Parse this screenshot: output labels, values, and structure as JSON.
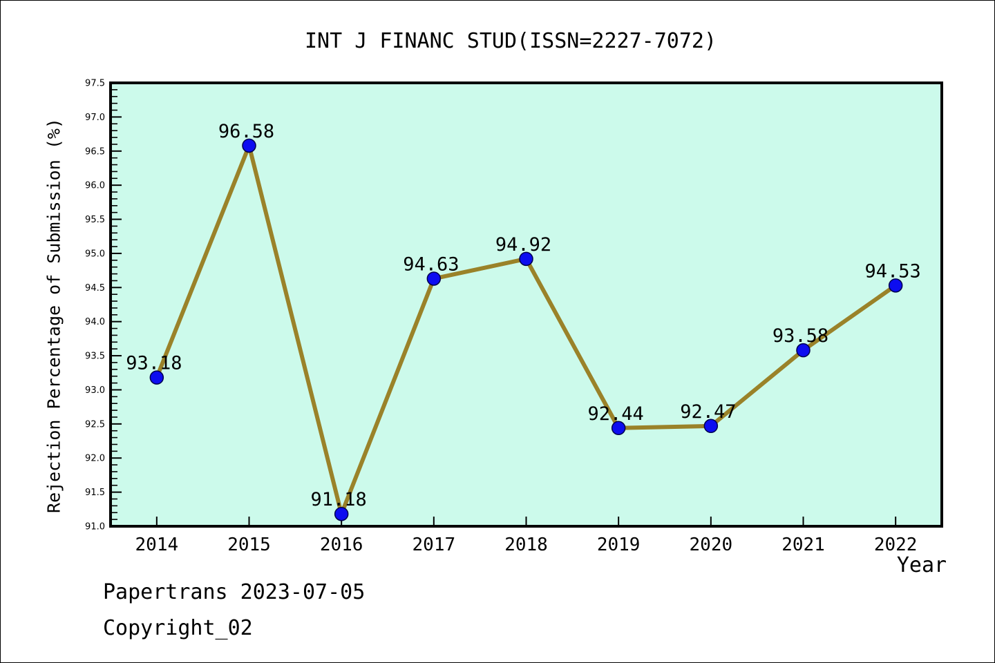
{
  "chart_data": {
    "type": "line",
    "title": "INT J FINANC STUD(ISSN=2227-7072)",
    "xlabel": "Year",
    "ylabel": "Rejection Percentage of Submission (%)",
    "x": [
      2014,
      2015,
      2016,
      2017,
      2018,
      2019,
      2020,
      2021,
      2022
    ],
    "series": [
      {
        "name": "rejection-percentage",
        "values": [
          93.18,
          96.58,
          91.18,
          94.63,
          94.92,
          92.44,
          92.47,
          93.58,
          94.53
        ]
      }
    ],
    "point_labels": [
      "93.18",
      "96.58",
      "91.18",
      "94.63",
      "94.92",
      "92.44",
      "92.47",
      "93.58",
      "94.53"
    ],
    "xlim": [
      2013.5,
      2022.5
    ],
    "ylim": [
      91.0,
      97.5
    ],
    "y_major_step": 0.5,
    "y_minor_step": 0.1,
    "y_tick_labels": [
      "91.0",
      "91.5",
      "92.0",
      "92.5",
      "93.0",
      "93.5",
      "94.0",
      "94.5",
      "95.0",
      "95.5",
      "96.0",
      "96.5",
      "97.0",
      "97.5"
    ],
    "grid": "off",
    "legend": "none",
    "colors": {
      "plot_background": "#ccfaeb",
      "line": "#9a8229",
      "marker_fill": "#0d0df0",
      "marker_edge": "#00004d",
      "spine": "#000000",
      "text": "#000000"
    }
  },
  "footer": {
    "line1": "Papertrans 2023-07-05",
    "line2": "Copyright_02"
  }
}
